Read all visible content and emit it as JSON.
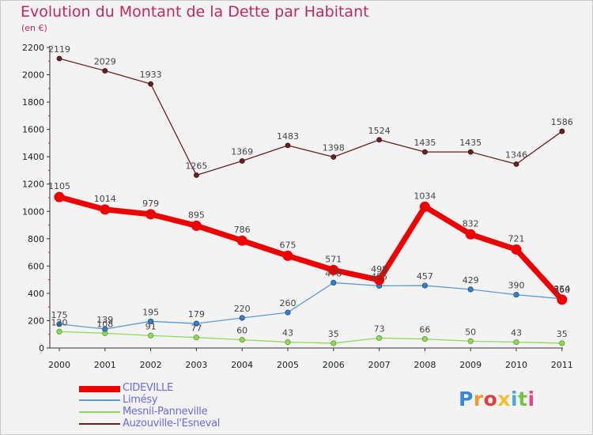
{
  "title": "Evolution du Montant de la Dette par Habitant",
  "subtitle": "(en €)",
  "logo_text": "Proxiti",
  "colors": {
    "background": "#f3f3f3",
    "title": "#c0285a",
    "legend_text": "#6a6ae8",
    "axis": "#333333",
    "grid_ticks": "#c0285a"
  },
  "chart_data": {
    "type": "line",
    "title": "Evolution du Montant de la Dette par Habitant",
    "subtitle": "(en €)",
    "categories": [
      "2000",
      "2001",
      "2002",
      "2003",
      "2004",
      "2005",
      "2006",
      "2007",
      "2008",
      "2009",
      "2010",
      "2011"
    ],
    "yticks": [
      "0",
      "200",
      "400",
      "600",
      "800",
      "1000",
      "1200",
      "1400",
      "1600",
      "1800",
      "2000",
      "2200"
    ],
    "ylim": [
      0,
      2200
    ],
    "grid": false,
    "legend_position": "bottom-left",
    "series": [
      {
        "name": "CIDEVILLE",
        "color": "#ee0000",
        "values": [
          1105,
          1014,
          979,
          895,
          786,
          675,
          571,
          498,
          1034,
          832,
          721,
          354
        ],
        "labels": [
          "1105",
          "1014",
          "979",
          "895",
          "786",
          "675",
          "571",
          "498",
          "1034",
          "832",
          "721",
          "354"
        ]
      },
      {
        "name": "Limésy",
        "color": "#5b9bd5",
        "values": [
          175,
          139,
          195,
          179,
          220,
          260,
          478,
          455,
          457,
          429,
          390,
          360
        ],
        "labels": [
          "175",
          "139",
          "195",
          "179",
          "220",
          "260",
          "478",
          "455",
          "457",
          "429",
          "390",
          "360"
        ]
      },
      {
        "name": "Mesnil-Panneville",
        "color": "#8fd95a",
        "values": [
          120,
          108,
          91,
          77,
          60,
          43,
          35,
          73,
          66,
          50,
          43,
          35
        ],
        "labels": [
          "120",
          "108",
          "91",
          "77",
          "60",
          "43",
          "35",
          "73",
          "66",
          "50",
          "43",
          "35"
        ]
      },
      {
        "name": "Auzouville-l'Esneval",
        "color": "#6b1f1f",
        "values": [
          2119,
          2029,
          1933,
          1265,
          1369,
          1483,
          1398,
          1524,
          1435,
          1435,
          1346,
          1586
        ],
        "labels": [
          "2119",
          "2029",
          "1933",
          "1265",
          "1369",
          "1483",
          "1398",
          "1524",
          "1435",
          "1435",
          "1346",
          "1586"
        ]
      }
    ]
  }
}
